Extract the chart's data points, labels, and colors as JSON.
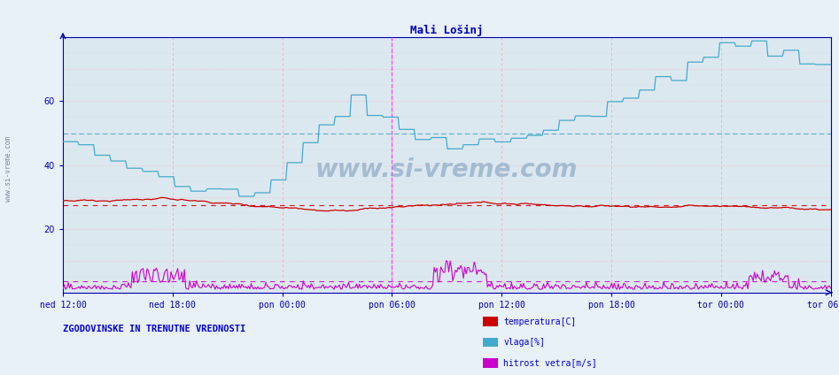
{
  "title": "Mali Lošinj",
  "background_color": "#dce8f0",
  "plot_bg_color": "#dce8f0",
  "fig_bg_color": "#e8f0f8",
  "ylim": [
    0,
    80
  ],
  "yticks": [
    20,
    40,
    60
  ],
  "xtick_labels": [
    "ned 12:00",
    "ned 18:00",
    "pon 00:00",
    "pon 06:00",
    "pon 12:00",
    "pon 18:00",
    "tor 00:00",
    "tor 06:00"
  ],
  "temperatura_color": "#cc0000",
  "vlaga_color": "#44aacc",
  "hitrost_color": "#cc00cc",
  "mean_temperatura": 27.5,
  "mean_vlaga": 50.0,
  "mean_hitrost": 3.5,
  "watermark": "www.si-vreme.com",
  "left_label": "www.si-vreme.com",
  "bottom_label": "ZGODOVINSKE IN TRENUTNE VREDNOSTI",
  "legend_labels": [
    "temperatura[C]",
    "vlaga[%]",
    "hitrost vetra[m/s]"
  ],
  "n_points": 576,
  "title_color": "#0000bb",
  "axis_color": "#0000aa",
  "tick_color": "#0000aa",
  "label_color": "#0000cc",
  "vgrid_color": "#ffaaaa",
  "hgrid_color": "#ffaaaa",
  "hgrid2_color": "#ccccdd"
}
